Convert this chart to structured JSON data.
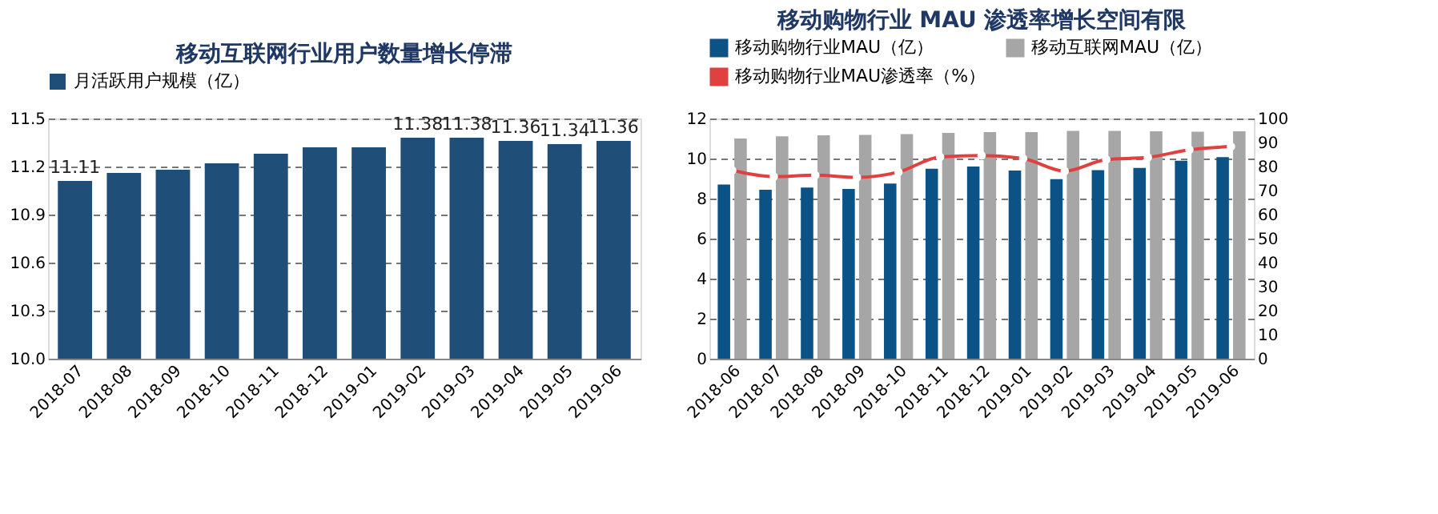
{
  "chart_data": [
    {
      "type": "bar",
      "title": "移动互联网行业用户数量增长停滞",
      "categories": [
        "2018-07",
        "2018-08",
        "2018-09",
        "2018-10",
        "2018-11",
        "2018-12",
        "2019-01",
        "2019-02",
        "2019-03",
        "2019-04",
        "2019-05",
        "2019-06"
      ],
      "series": [
        {
          "name": "月活跃用户规模（亿）",
          "color": "#1f4e79",
          "values": [
            11.11,
            11.16,
            11.18,
            11.22,
            11.28,
            11.32,
            11.32,
            11.38,
            11.38,
            11.36,
            11.34,
            11.36
          ],
          "value_labels": [
            "11.11",
            null,
            null,
            null,
            null,
            null,
            null,
            "11.38",
            "11.38",
            "11.36",
            "11.34",
            "11.36"
          ]
        }
      ],
      "ylim": [
        10.0,
        11.5
      ],
      "yticks": [
        {
          "value": 10.0,
          "label": "10.0"
        },
        10.3,
        10.6,
        10.9,
        11.2,
        11.5
      ],
      "grid": "y",
      "legend": "top"
    },
    {
      "type": "bar",
      "title": "移动购物行业 MAU 渗透率增长空间有限",
      "categories": [
        "2018-06",
        "2018-07",
        "2018-08",
        "2018-09",
        "2018-10",
        "2018-11",
        "2018-12",
        "2019-01",
        "2019-02",
        "2019-03",
        "2019-04",
        "2019-05",
        "2019-06"
      ],
      "series": [
        {
          "name": "移动购物行业MAU（亿）",
          "type": "bar",
          "color": "#0b5286",
          "values": [
            8.7,
            8.44,
            8.55,
            8.48,
            8.75,
            9.49,
            9.6,
            9.4,
            8.97,
            9.42,
            9.53,
            9.89,
            10.07
          ]
        },
        {
          "name": "移动互联网MAU（亿）",
          "type": "bar",
          "color": "#a6a6a6",
          "values": [
            11.0,
            11.11,
            11.16,
            11.18,
            11.22,
            11.28,
            11.32,
            11.32,
            11.38,
            11.38,
            11.36,
            11.34,
            11.36
          ]
        },
        {
          "name": "移动购物行业MAU渗透率（%）",
          "type": "line",
          "axis": "y2",
          "color": "#e0403f",
          "marker": "circle",
          "values": [
            78.4,
            75.8,
            76.4,
            75.5,
            77.7,
            84.0,
            84.6,
            83.3,
            78.1,
            82.9,
            83.8,
            87.0,
            88.3
          ]
        }
      ],
      "ylim": [
        0,
        12
      ],
      "yticks": [
        0,
        2,
        4,
        6,
        8,
        10,
        12
      ],
      "y2lim": [
        0,
        100
      ],
      "y2ticks": [
        0,
        10,
        20,
        30,
        40,
        50,
        60,
        70,
        80,
        90,
        100
      ],
      "grid": "y",
      "legend": "top"
    }
  ]
}
